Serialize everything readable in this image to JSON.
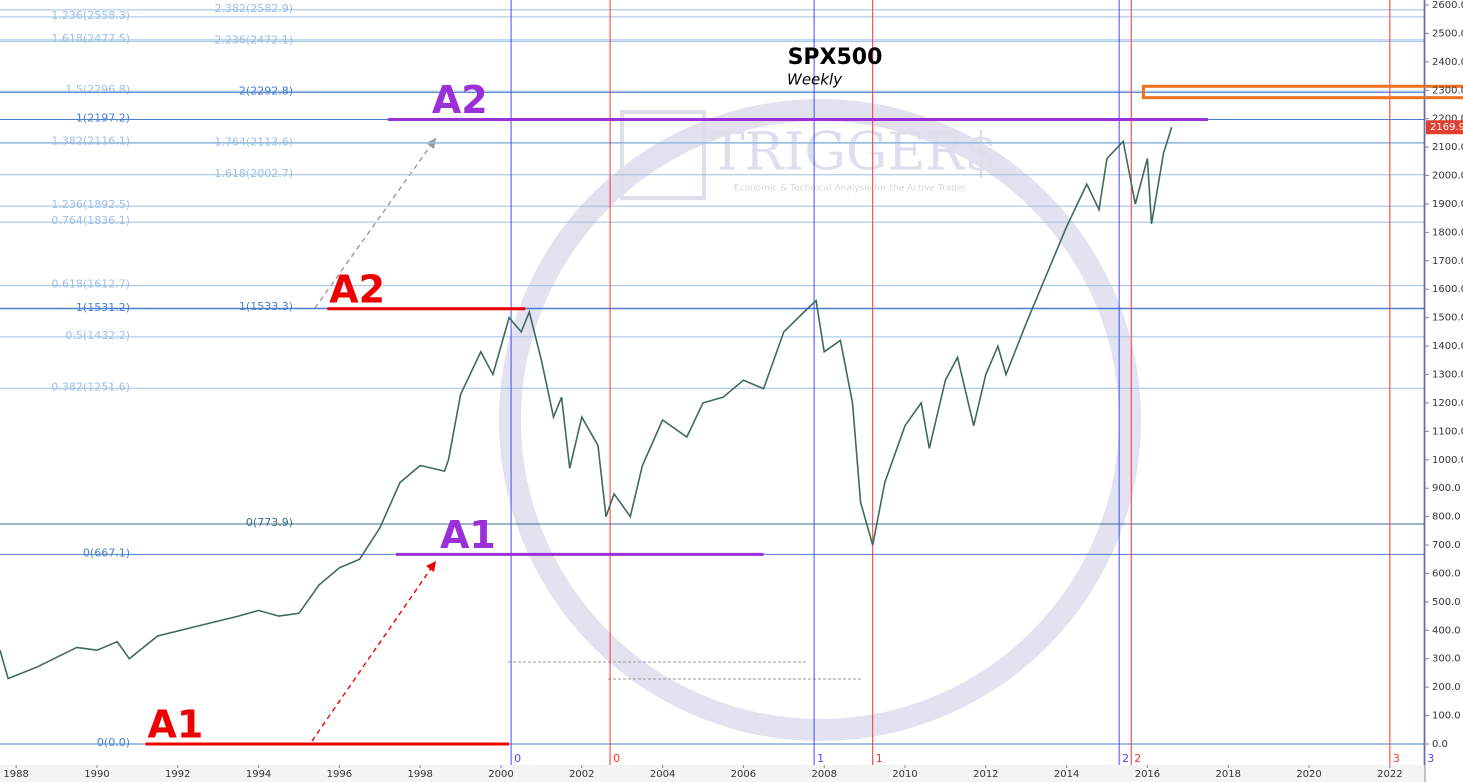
{
  "chart_data": {
    "type": "line",
    "title": "SPX500",
    "subtitle": "Weekly",
    "watermark": {
      "logo": "TRIGGER$",
      "tagline": "Economic & Technical Analysis for the Active Trader"
    },
    "xlim": [
      1987.6,
      2022.87
    ],
    "ylim": [
      -73.9,
      2617.6
    ],
    "xticks": [
      1988,
      1990,
      1992,
      1994,
      1996,
      1998,
      2000,
      2002,
      2004,
      2006,
      2008,
      2010,
      2012,
      2014,
      2016,
      2018,
      2020,
      2022
    ],
    "yticks": [
      {
        "value": 0,
        "label": "0.0"
      },
      {
        "value": 100,
        "label": "100.0"
      },
      {
        "value": 200,
        "label": "200.0"
      },
      {
        "value": 300,
        "label": "300.0"
      },
      {
        "value": 400,
        "label": "400.0"
      },
      {
        "value": 500,
        "label": "500.0"
      },
      {
        "value": 600,
        "label": "600.0"
      },
      {
        "value": 700,
        "label": "700.0"
      },
      {
        "value": 800,
        "label": "800.0"
      },
      {
        "value": 900,
        "label": "900.0"
      },
      {
        "value": 1000,
        "label": "1000.0"
      },
      {
        "value": 1100,
        "label": "1100.0"
      },
      {
        "value": 1200,
        "label": "1200.0"
      },
      {
        "value": 1300,
        "label": "1300.0"
      },
      {
        "value": 1400,
        "label": "1400.0"
      },
      {
        "value": 1500,
        "label": "1500.0"
      },
      {
        "value": 1600,
        "label": "1600.0"
      },
      {
        "value": 1700,
        "label": "1700.0"
      },
      {
        "value": 1800,
        "label": "1800.0"
      },
      {
        "value": 1900,
        "label": "1900.0"
      },
      {
        "value": 2000,
        "label": "2000.0"
      },
      {
        "value": 2100,
        "label": "2100.0"
      },
      {
        "value": 2200,
        "label": "2200.0"
      },
      {
        "value": 2300,
        "label": "2300.0"
      },
      {
        "value": 2400,
        "label": "2400.0"
      },
      {
        "value": 2500,
        "label": "2500.0"
      },
      {
        "value": 2600,
        "label": "2600.0"
      }
    ],
    "series": [
      {
        "name": "SPX500",
        "color": "#3d6b5c",
        "x": [
          1987.6,
          1987.8,
          1988.5,
          1989.5,
          1990.0,
          1990.5,
          1990.8,
          1991.5,
          1992.5,
          1993.5,
          1994.0,
          1994.5,
          1995.0,
          1995.5,
          1996.0,
          1996.5,
          1997.0,
          1997.5,
          1998.0,
          1998.6,
          1998.7,
          1999.0,
          1999.5,
          1999.8,
          2000.2,
          2000.5,
          2000.7,
          2001.0,
          2001.3,
          2001.5,
          2001.7,
          2002.0,
          2002.4,
          2002.6,
          2002.8,
          2003.2,
          2003.5,
          2004.0,
          2004.6,
          2005.0,
          2005.5,
          2006.0,
          2006.5,
          2007.0,
          2007.5,
          2007.8,
          2008.0,
          2008.4,
          2008.7,
          2008.9,
          2009.2,
          2009.5,
          2010.0,
          2010.4,
          2010.6,
          2011.0,
          2011.3,
          2011.7,
          2012.0,
          2012.3,
          2012.5,
          2013.0,
          2013.5,
          2014.0,
          2014.5,
          2014.8,
          2015.0,
          2015.4,
          2015.7,
          2016.0,
          2016.1,
          2016.4,
          2016.6
        ],
        "values": [
          330,
          230,
          270,
          340,
          330,
          360,
          300,
          380,
          415,
          450,
          470,
          450,
          460,
          560,
          620,
          650,
          760,
          920,
          980,
          960,
          1000,
          1230,
          1380,
          1300,
          1500,
          1450,
          1520,
          1350,
          1150,
          1220,
          970,
          1150,
          1050,
          800,
          880,
          800,
          980,
          1140,
          1080,
          1200,
          1220,
          1280,
          1250,
          1450,
          1520,
          1560,
          1380,
          1420,
          1200,
          850,
          700,
          920,
          1120,
          1200,
          1040,
          1280,
          1360,
          1120,
          1300,
          1400,
          1300,
          1480,
          1650,
          1820,
          1970,
          1880,
          2060,
          2120,
          1900,
          2060,
          1830,
          2080,
          2170
        ]
      }
    ],
    "last_price": 2169.9,
    "fib_levels_left": [
      {
        "label": "1.236(2558.3)",
        "value": 2558.3,
        "color": "#9dbfe6"
      },
      {
        "label": "1.618(2477.5)",
        "value": 2477.5,
        "color": "#9dbfe6"
      },
      {
        "label": "1.5(2296.8)",
        "value": 2296.8,
        "color": "#9dbfe6"
      },
      {
        "label": "1(2197.2)",
        "value": 2197.2,
        "color": "#4a7fcf"
      },
      {
        "label": "1.382(2116.1)",
        "value": 2116.1,
        "color": "#9dbfe6"
      },
      {
        "label": "1.236(1892.5)",
        "value": 1892.5,
        "color": "#9dbfe6"
      },
      {
        "label": "0.764(1836.1)",
        "value": 1836.1,
        "color": "#9dbfe6"
      },
      {
        "label": "0.618(1612.7)",
        "value": 1612.7,
        "color": "#9dbfe6"
      },
      {
        "label": "1(1531.2)",
        "value": 1531.2,
        "color": "#4a7fcf"
      },
      {
        "label": "0.5(1432.2)",
        "value": 1432.2,
        "color": "#9dbfe6"
      },
      {
        "label": "0.382(1251.6)",
        "value": 1251.6,
        "color": "#9dbfe6"
      },
      {
        "label": "0(667.1)",
        "value": 667.1,
        "color": "#4a7fcf"
      },
      {
        "label": "0(0.0)",
        "value": 0,
        "color": "#4a7fcf"
      }
    ],
    "fib_levels_right": [
      {
        "label": "2.382(2582.9)",
        "value": 2582.9,
        "color": "#9dbfe6"
      },
      {
        "label": "2.236(2472.1)",
        "value": 2472.1,
        "color": "#9dbfe6"
      },
      {
        "label": "2(2292.8)",
        "value": 2292.8,
        "color": "#4a7fcf"
      },
      {
        "label": "1.764(2113.6)",
        "value": 2113.6,
        "color": "#9dbfe6"
      },
      {
        "label": "1.618(2002.7)",
        "value": 2002.7,
        "color": "#9dbfe6"
      },
      {
        "label": "1(1533.3)",
        "value": 1533.3,
        "color": "#4a7fcf"
      },
      {
        "label": "0(773.9)",
        "value": 773.9,
        "color": "#3a6f8f"
      }
    ],
    "cycles": [
      {
        "label": "0",
        "x": 2000.25,
        "color": "#4a4aff"
      },
      {
        "label": "1",
        "x": 2007.75,
        "color": "#4a4aff"
      },
      {
        "label": "2",
        "x": 2015.3,
        "color": "#4a4aff"
      },
      {
        "label": "3",
        "x": 2022.85,
        "color": "#4a4aff"
      },
      {
        "label": "0",
        "x": 2002.7,
        "color": "#ff3030"
      },
      {
        "label": "1",
        "x": 2009.2,
        "color": "#ff3030"
      },
      {
        "label": "2",
        "x": 2015.6,
        "color": "#ff3030"
      },
      {
        "label": "3",
        "x": 2022.0,
        "color": "#ff3030"
      }
    ],
    "annotations": [
      {
        "text": "A2",
        "color": "#ee0000",
        "x": [
          1995.7,
          2000.6
        ],
        "y": 1531.2
      },
      {
        "text": "A1",
        "color": "#ee0000",
        "x": [
          1991.2,
          2000.2
        ],
        "y": 0
      },
      {
        "text": "A2",
        "color": "#9b30d9",
        "x": [
          1997.2,
          2017.5
        ],
        "y": 2197.2
      },
      {
        "text": "A1",
        "color": "#9b30d9",
        "x": [
          1997.4,
          2006.5
        ],
        "y": 667.1
      }
    ],
    "target_zone": {
      "x": 2015.9,
      "y": [
        2274,
        2314
      ],
      "color": "#f07020"
    }
  }
}
